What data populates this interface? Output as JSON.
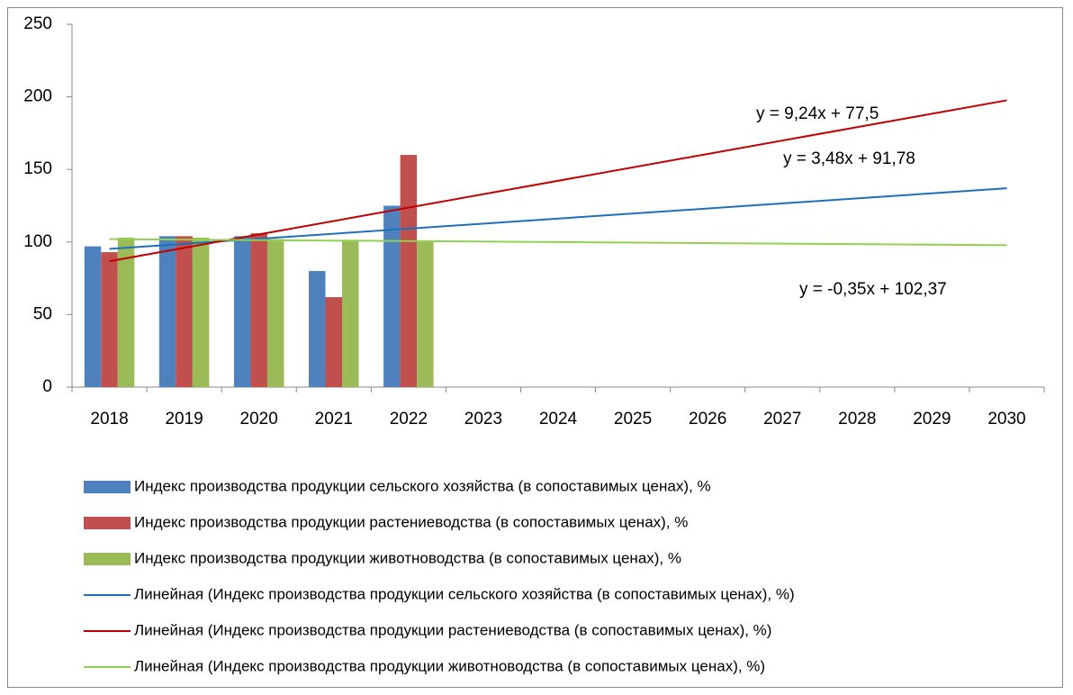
{
  "chart_data": {
    "type": "bar",
    "categories": [
      "2018",
      "2019",
      "2020",
      "2021",
      "2022",
      "2023",
      "2024",
      "2025",
      "2026",
      "2027",
      "2028",
      "2029",
      "2030"
    ],
    "series": [
      {
        "name": "Индекс производства продукции сельского хозяйства (в сопоставимых ценах), %",
        "color": "#4f81bd",
        "values": [
          97,
          104,
          104,
          80,
          125,
          null,
          null,
          null,
          null,
          null,
          null,
          null,
          null
        ]
      },
      {
        "name": "Индекс производства продукции растениеводства (в сопоставимых ценах), %",
        "color": "#c0504d",
        "values": [
          93,
          104,
          106,
          62,
          160,
          null,
          null,
          null,
          null,
          null,
          null,
          null,
          null
        ]
      },
      {
        "name": "Индекс производства продукции животноводства (в сопоставимых ценах), %",
        "color": "#9bbb59",
        "values": [
          103,
          103,
          102,
          101,
          101,
          null,
          null,
          null,
          null,
          null,
          null,
          null,
          null
        ]
      }
    ],
    "trendlines": [
      {
        "name": "Линейная (Индекс производства продукции сельского хозяйства (в сопоставимых ценах), %)",
        "color": "#1f6fbf",
        "slope": 3.48,
        "intercept": 91.78,
        "label": "y = 3,48x + 91,78"
      },
      {
        "name": "Линейная (Индекс производства продукции растениеводства (в сопоставимых ценах), %)",
        "color": "#c00000",
        "slope": 9.24,
        "intercept": 77.5,
        "label": "y = 9,24x + 77,5"
      },
      {
        "name": "Линейная (Индекс производства продукции животноводства (в сопоставимых ценах), %)",
        "color": "#92d050",
        "slope": -0.35,
        "intercept": 102.37,
        "label": "y = -0,35x + 102,37"
      }
    ],
    "ylim": [
      0,
      250
    ],
    "yticks": [
      0,
      50,
      100,
      150,
      200,
      250
    ],
    "grid": false
  }
}
